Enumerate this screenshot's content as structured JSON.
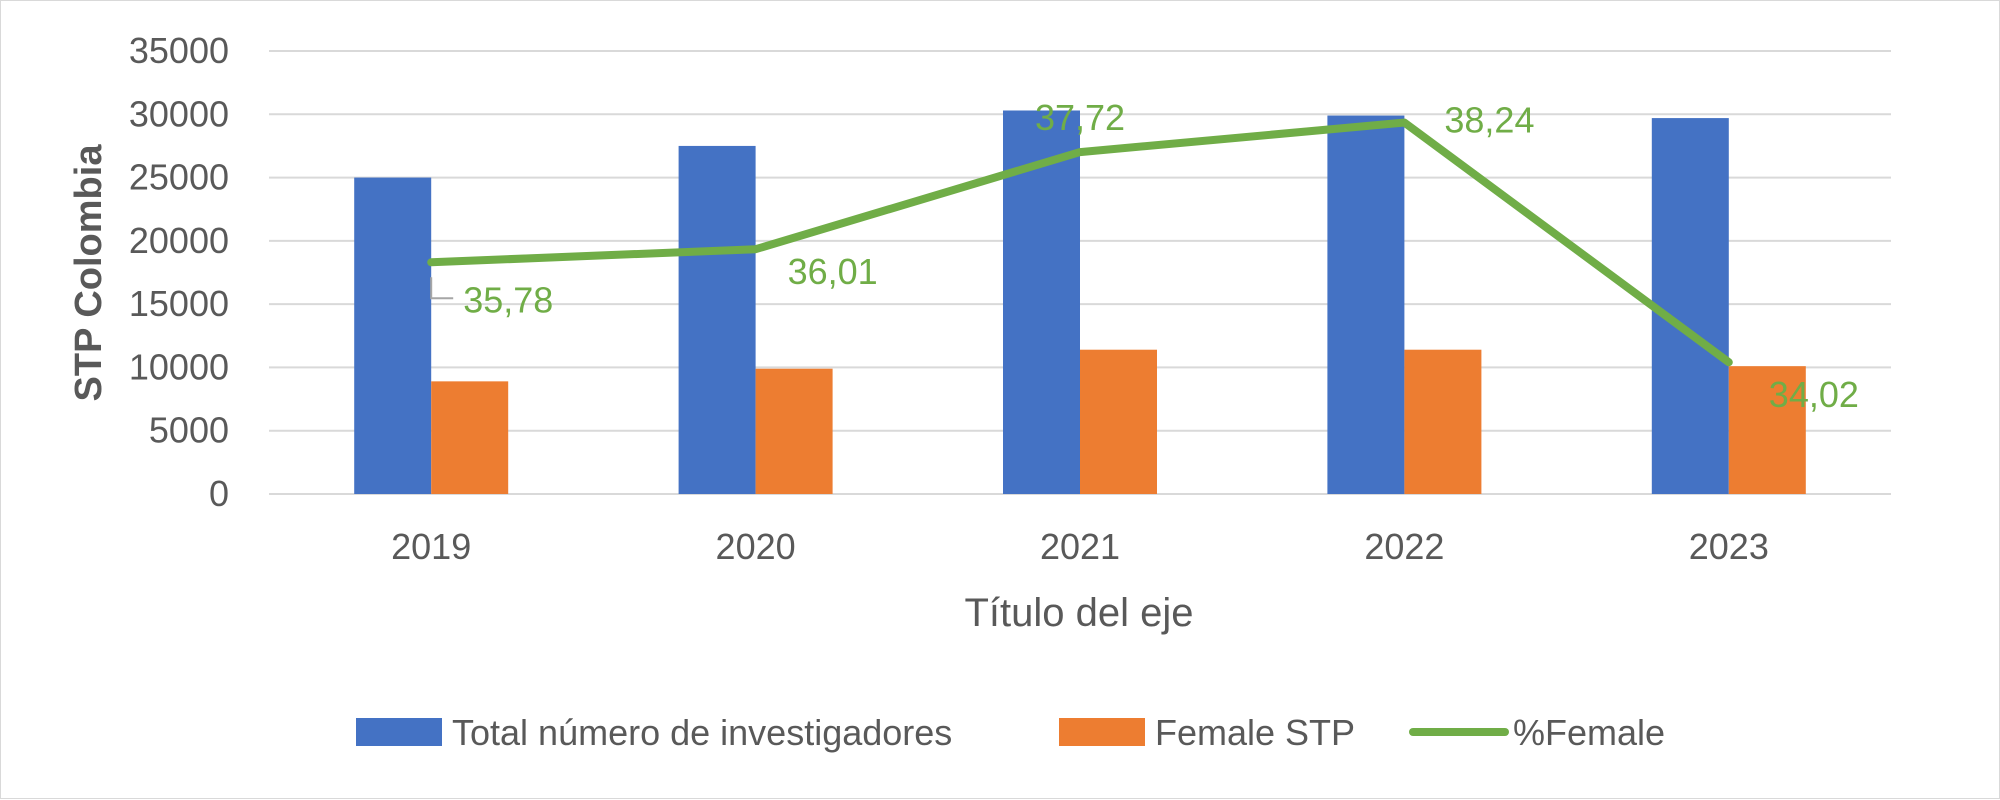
{
  "chart_data": {
    "type": "bar",
    "categories": [
      "2019",
      "2020",
      "2021",
      "2022",
      "2023"
    ],
    "series": [
      {
        "name": "Total número de investigadores",
        "type": "bar",
        "color": "#4472C4",
        "values": [
          25000,
          27500,
          30300,
          29900,
          29700
        ]
      },
      {
        "name": "Female STP",
        "type": "bar",
        "color": "#ED7D31",
        "values": [
          8900,
          9900,
          11400,
          11400,
          10100
        ]
      },
      {
        "name": "%Female",
        "type": "line",
        "color": "#70AD47",
        "values": [
          35.78,
          36.01,
          37.72,
          38.24,
          34.02
        ],
        "data_labels": [
          "35,78",
          "36,01",
          "37,72",
          "38,24",
          "34,02"
        ]
      }
    ],
    "xlabel": "Título del eje",
    "ylabel": "STP Colombia",
    "ylim": [
      0,
      35000
    ],
    "yticks": [
      "35000",
      "30000",
      "25000",
      "20000",
      "15000",
      "10000",
      "5000",
      "0"
    ],
    "grid": true,
    "legend": "bottom"
  }
}
